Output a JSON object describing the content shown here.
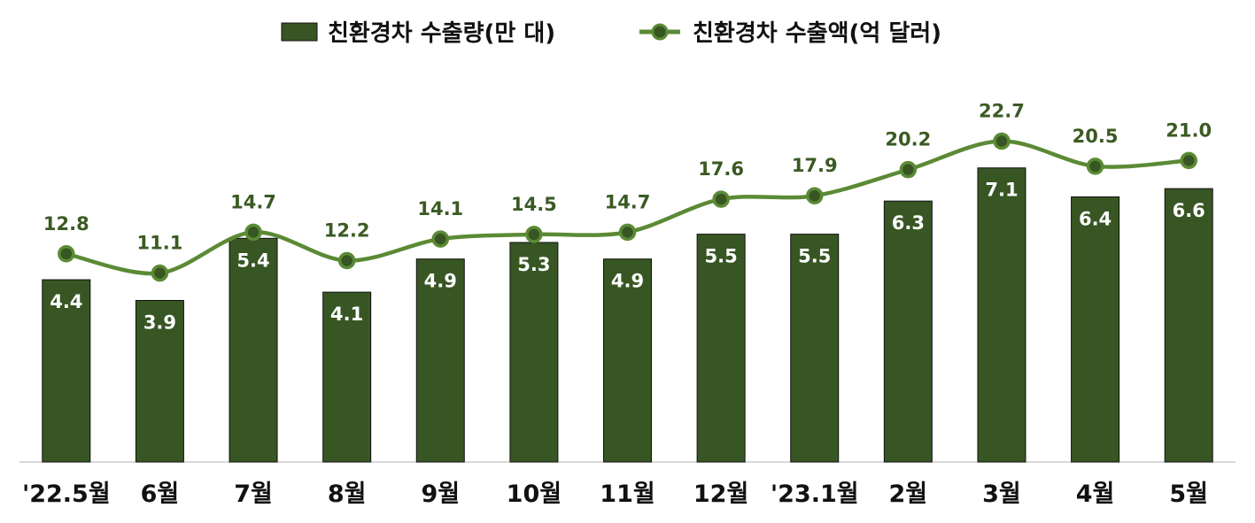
{
  "chart_data": {
    "type": "bar",
    "categories": [
      "'22.5월",
      "6월",
      "7월",
      "8월",
      "9월",
      "10월",
      "11월",
      "12월",
      "'23.1월",
      "2월",
      "3월",
      "4월",
      "5월"
    ],
    "series": [
      {
        "name": "친환경차 수출량(만 대)",
        "type": "bar",
        "axis": "left",
        "color": "#375623",
        "values": [
          4.4,
          3.9,
          5.4,
          4.1,
          4.9,
          5.3,
          4.9,
          5.5,
          5.5,
          6.3,
          7.1,
          6.4,
          6.6
        ],
        "labels": [
          "4.4",
          "3.9",
          "5.4",
          "4.1",
          "4.9",
          "5.3",
          "4.9",
          "5.5",
          "5.5",
          "6.3",
          "7.1",
          "6.4",
          "6.6"
        ]
      },
      {
        "name": "친환경차 수출액(억 달러)",
        "type": "line",
        "axis": "right",
        "smooth": true,
        "color": "#5b8a35",
        "values": [
          12.8,
          11.1,
          14.7,
          12.2,
          14.1,
          14.5,
          14.7,
          17.6,
          17.9,
          20.2,
          22.7,
          20.5,
          21.0
        ],
        "labels": [
          "12.8",
          "11.1",
          "14.7",
          "12.2",
          "14.1",
          "14.5",
          "14.7",
          "17.6",
          "17.9",
          "20.2",
          "22.7",
          "20.5",
          "21.0"
        ]
      }
    ],
    "ylim_left": [
      0,
      10.3
    ],
    "ylim_right": [
      -5.5,
      32
    ],
    "legend_position": "top",
    "grid": false
  }
}
